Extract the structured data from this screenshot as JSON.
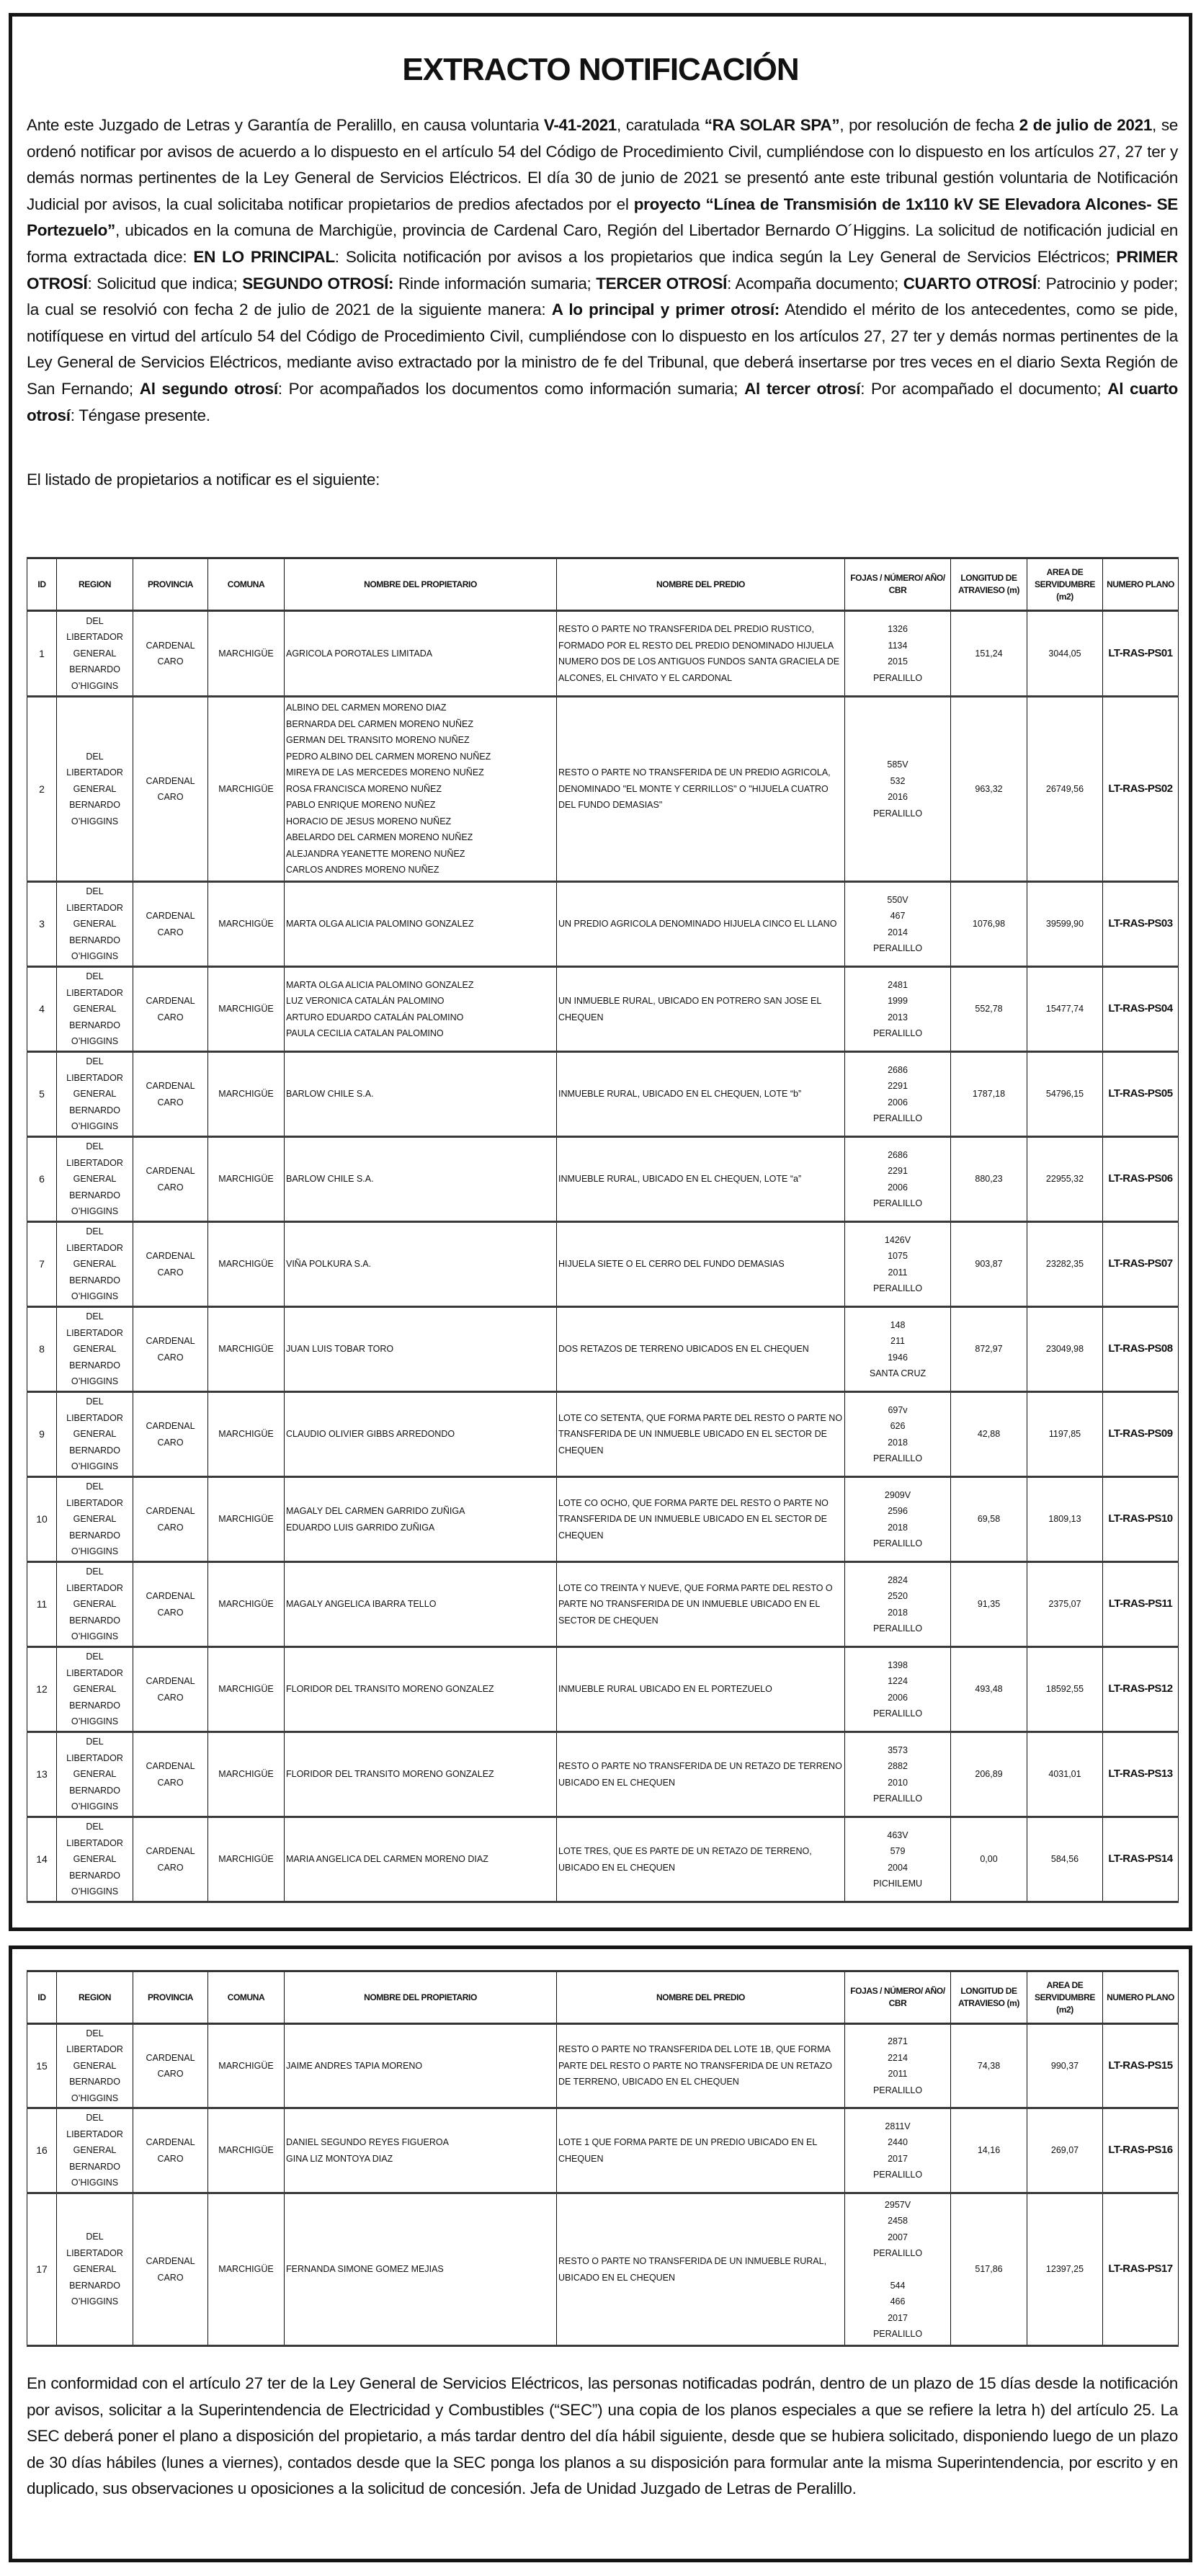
{
  "title": "EXTRACTO NOTIFICACIÓN",
  "intro_segments": [
    {
      "text": "Ante este Juzgado de Letras y Garantía de Peralillo, en causa voluntaria ",
      "bold": false
    },
    {
      "text": "V-41-2021",
      "bold": true
    },
    {
      "text": ", caratulada ",
      "bold": false
    },
    {
      "text": "“RA SOLAR SPA”",
      "bold": true
    },
    {
      "text": ", por resolución de fecha ",
      "bold": false
    },
    {
      "text": "2 de julio de 2021",
      "bold": true
    },
    {
      "text": ", se ordenó notificar por avisos de acuerdo a lo dispuesto en el artículo 54 del Código de Procedimiento Civil, cumpliéndose con lo dispuesto en los artículos 27, 27 ter y demás normas pertinentes de la Ley General de Servicios Eléctricos. El día 30 de junio de 2021 se presentó ante este tribunal gestión voluntaria de Notificación Judicial por avisos, la cual solicitaba notificar propietarios de predios afectados por el ",
      "bold": false
    },
    {
      "text": "proyecto “Línea de Transmisión de 1x110 kV SE Elevadora Alcones- SE Portezuelo”",
      "bold": true
    },
    {
      "text": ", ubicados en la comuna de Marchigüe, provincia de Cardenal Caro, Región del Libertador Bernardo O´Higgins. La solicitud de notificación judicial en forma extractada dice: ",
      "bold": false
    },
    {
      "text": "EN LO PRINCIPAL",
      "bold": true
    },
    {
      "text": ": Solicita notificación por avisos a los propietarios que indica según la Ley General de Servicios Eléctricos; ",
      "bold": false
    },
    {
      "text": "PRIMER OTROSÍ",
      "bold": true
    },
    {
      "text": ": Solicitud que indica; ",
      "bold": false
    },
    {
      "text": "SEGUNDO OTROSÍ:",
      "bold": true
    },
    {
      "text": " Rinde información sumaria; ",
      "bold": false
    },
    {
      "text": "TERCER OTROSÍ",
      "bold": true
    },
    {
      "text": ": Acompaña documento; ",
      "bold": false
    },
    {
      "text": "CUARTO OTROSÍ",
      "bold": true
    },
    {
      "text": ": Patrocinio y poder;  la cual se resolvió con fecha 2 de julio de 2021 de la siguiente manera: ",
      "bold": false
    },
    {
      "text": "A lo principal y primer otrosí:",
      "bold": true
    },
    {
      "text": " Atendido el mérito de los antecedentes, como se pide, notifíquese en virtud del artículo 54 del Código de Procedimiento Civil, cumpliéndose con lo dispuesto en los artículos 27, 27 ter y demás normas pertinentes de la Ley General de Servicios Eléctricos, mediante aviso extractado por la ministro de fe del Tribunal, que deberá insertarse por tres veces en el diario Sexta Región de San Fernando; ",
      "bold": false
    },
    {
      "text": "Al segundo otrosí",
      "bold": true
    },
    {
      "text": ": Por acompañados los documentos como información sumaria; ",
      "bold": false
    },
    {
      "text": "Al tercer otrosí",
      "bold": true
    },
    {
      "text": ": Por acompañado el documento; ",
      "bold": false
    },
    {
      "text": "Al cuarto otrosí",
      "bold": true
    },
    {
      "text": ": Téngase presente.",
      "bold": false
    }
  ],
  "listing_intro": "El listado de propietarios a notificar es el siguiente:",
  "headers": {
    "id": "ID",
    "region": "REGION",
    "provincia": "PROVINCIA",
    "comuna": "COMUNA",
    "owner": "NOMBRE DEL PROPIETARIO",
    "predio": "NOMBRE DEL PREDIO",
    "fojas": "FOJAS / NÚMERO/ AÑO/ CBR",
    "longitud": "LONGITUD DE ATRAVIESO (m)",
    "area": "AREA DE SERVIDUMBRE (m2)",
    "plano": "NUMERO PLANO"
  },
  "table1": {
    "rows": [
      {
        "id": "1",
        "region": "DEL LIBERTADOR GENERAL BERNARDO O’HIGGINS",
        "provincia": "CARDENAL CARO",
        "comuna": "MARCHIGÜE",
        "owners": [
          "AGRICOLA POROTALES LIMITADA"
        ],
        "predio": "RESTO O PARTE NO TRANSFERIDA DEL PREDIO RUSTICO, FORMADO POR EL RESTO DEL PREDIO DENOMINADO HIJUELA NUMERO DOS DE LOS ANTIGUOS FUNDOS SANTA GRACIELA DE ALCONES, EL CHIVATO Y EL CARDONAL",
        "fojas": [
          "1326",
          "1134",
          "2015",
          "PERALILLO"
        ],
        "longitud": "151,24",
        "area": "3044,05",
        "plano": "LT-RAS-PS01"
      },
      {
        "id": "2",
        "region": "DEL LIBERTADOR GENERAL BERNARDO O’HIGGINS",
        "provincia": "CARDENAL CARO",
        "comuna": "MARCHIGÜE",
        "owners": [
          "ALBINO DEL CARMEN MORENO DIAZ",
          "BERNARDA DEL CARMEN MORENO NUÑEZ",
          "GERMAN DEL TRANSITO MORENO NUÑEZ",
          "PEDRO ALBINO DEL CARMEN MORENO NUÑEZ",
          "MIREYA DE LAS MERCEDES MORENO NUÑEZ",
          "ROSA FRANCISCA MORENO NUÑEZ",
          "PABLO ENRIQUE MORENO NUÑEZ",
          "HORACIO DE JESUS MORENO NUÑEZ",
          "ABELARDO DEL CARMEN MORENO NUÑEZ",
          "ALEJANDRA YEANETTE MORENO NUÑEZ",
          "CARLOS ANDRES MORENO NUÑEZ"
        ],
        "predio": "RESTO O PARTE NO TRANSFERIDA DE UN PREDIO AGRICOLA, DENOMINADO \"EL MONTE Y CERRILLOS\" O \"HIJUELA CUATRO DEL FUNDO DEMASIAS\"",
        "fojas": [
          "585V",
          "532",
          "2016",
          "PERALILLO"
        ],
        "longitud": "963,32",
        "area": "26749,56",
        "plano": "LT-RAS-PS02"
      },
      {
        "id": "3",
        "region": "DEL LIBERTADOR GENERAL BERNARDO O’HIGGINS",
        "provincia": "CARDENAL CARO",
        "comuna": "MARCHIGÜE",
        "owners": [
          "MARTA OLGA ALICIA PALOMINO GONZALEZ"
        ],
        "predio": "UN PREDIO AGRICOLA DENOMINADO HIJUELA CINCO EL LLANO",
        "fojas": [
          "550V",
          "467",
          "2014",
          "PERALILLO"
        ],
        "longitud": "1076,98",
        "area": "39599,90",
        "plano": "LT-RAS-PS03"
      },
      {
        "id": "4",
        "region": "DEL LIBERTADOR GENERAL BERNARDO O’HIGGINS",
        "provincia": "CARDENAL CARO",
        "comuna": "MARCHIGÜE",
        "owners": [
          "MARTA OLGA ALICIA PALOMINO GONZALEZ",
          "LUZ VERONICA CATALÁN PALOMINO",
          "ARTURO EDUARDO CATALÁN PALOMINO",
          "PAULA CECILIA CATALAN PALOMINO"
        ],
        "predio": "UN INMUEBLE RURAL, UBICADO EN POTRERO SAN JOSE EL CHEQUEN",
        "fojas": [
          "2481",
          "1999",
          "2013",
          "PERALILLO"
        ],
        "longitud": "552,78",
        "area": "15477,74",
        "plano": "LT-RAS-PS04"
      },
      {
        "id": "5",
        "region": "DEL LIBERTADOR GENERAL BERNARDO O’HIGGINS",
        "provincia": "CARDENAL CARO",
        "comuna": "MARCHIGÜE",
        "owners": [
          "BARLOW CHILE S.A."
        ],
        "predio": "INMUEBLE RURAL, UBICADO EN EL CHEQUEN, LOTE “b”",
        "fojas": [
          "2686",
          "2291",
          "2006",
          "PERALILLO"
        ],
        "longitud": "1787,18",
        "area": "54796,15",
        "plano": "LT-RAS-PS05"
      },
      {
        "id": "6",
        "region": "DEL LIBERTADOR GENERAL BERNARDO O’HIGGINS",
        "provincia": "CARDENAL CARO",
        "comuna": "MARCHIGÜE",
        "owners": [
          "BARLOW CHILE S.A."
        ],
        "predio": "INMUEBLE RURAL, UBICADO EN EL CHEQUEN, LOTE “a”",
        "fojas": [
          "2686",
          "2291",
          "2006",
          "PERALILLO"
        ],
        "longitud": "880,23",
        "area": "22955,32",
        "plano": "LT-RAS-PS06"
      },
      {
        "id": "7",
        "region": "DEL LIBERTADOR GENERAL BERNARDO O’HIGGINS",
        "provincia": "CARDENAL CARO",
        "comuna": "MARCHIGÜE",
        "owners": [
          "VIÑA POLKURA S.A."
        ],
        "predio": "HIJUELA SIETE O EL CERRO DEL FUNDO DEMASIAS",
        "fojas": [
          "1426V",
          "1075",
          "2011",
          "PERALILLO"
        ],
        "longitud": "903,87",
        "area": "23282,35",
        "plano": "LT-RAS-PS07"
      },
      {
        "id": "8",
        "region": "DEL LIBERTADOR GENERAL BERNARDO O’HIGGINS",
        "provincia": "CARDENAL CARO",
        "comuna": "MARCHIGÜE",
        "owners": [
          "JUAN LUIS TOBAR TORO"
        ],
        "predio": "DOS RETAZOS DE TERRENO UBICADOS EN EL CHEQUEN",
        "fojas": [
          "148",
          "211",
          "1946",
          "SANTA CRUZ"
        ],
        "longitud": "872,97",
        "area": "23049,98",
        "plano": "LT-RAS-PS08"
      },
      {
        "id": "9",
        "region": "DEL LIBERTADOR GENERAL BERNARDO O’HIGGINS",
        "provincia": "CARDENAL CARO",
        "comuna": "MARCHIGÜE",
        "owners": [
          "CLAUDIO OLIVIER GIBBS ARREDONDO"
        ],
        "predio": "LOTE CO SETENTA, QUE FORMA PARTE DEL RESTO O PARTE NO TRANSFERIDA DE UN INMUEBLE UBICADO EN EL SECTOR DE CHEQUEN",
        "fojas": [
          "697v",
          "626",
          "2018",
          "PERALILLO"
        ],
        "longitud": "42,88",
        "area": "1197,85",
        "plano": "LT-RAS-PS09"
      },
      {
        "id": "10",
        "region": "DEL LIBERTADOR GENERAL BERNARDO O’HIGGINS",
        "provincia": "CARDENAL CARO",
        "comuna": "MARCHIGÜE",
        "owners": [
          "MAGALY DEL CARMEN GARRIDO ZUÑIGA",
          "EDUARDO LUIS GARRIDO ZUÑIGA"
        ],
        "predio": "LOTE CO OCHO, QUE FORMA PARTE DEL RESTO O PARTE NO TRANSFERIDA DE UN INMUEBLE UBICADO EN EL SECTOR DE CHEQUEN",
        "fojas": [
          "2909V",
          "2596",
          "2018",
          "PERALILLO"
        ],
        "longitud": "69,58",
        "area": "1809,13",
        "plano": "LT-RAS-PS10"
      },
      {
        "id": "11",
        "region": "DEL LIBERTADOR GENERAL BERNARDO O’HIGGINS",
        "provincia": "CARDENAL CARO",
        "comuna": "MARCHIGÜE",
        "owners": [
          "MAGALY ANGELICA IBARRA TELLO"
        ],
        "predio": "LOTE CO TREINTA Y NUEVE, QUE FORMA PARTE DEL RESTO O PARTE NO TRANSFERIDA DE UN INMUEBLE UBICADO EN EL SECTOR DE CHEQUEN",
        "fojas": [
          "2824",
          "2520",
          "2018",
          "PERALILLO"
        ],
        "longitud": "91,35",
        "area": "2375,07",
        "plano": "LT-RAS-PS11"
      },
      {
        "id": "12",
        "region": "DEL LIBERTADOR GENERAL BERNARDO O’HIGGINS",
        "provincia": "CARDENAL CARO",
        "comuna": "MARCHIGÜE",
        "owners": [
          "FLORIDOR DEL TRANSITO MORENO GONZALEZ"
        ],
        "predio": "INMUEBLE RURAL UBICADO EN EL PORTEZUELO",
        "fojas": [
          "1398",
          "1224",
          "2006",
          "PERALILLO"
        ],
        "longitud": "493,48",
        "area": "18592,55",
        "plano": "LT-RAS-PS12"
      },
      {
        "id": "13",
        "region": "DEL LIBERTADOR GENERAL BERNARDO O’HIGGINS",
        "provincia": "CARDENAL CARO",
        "comuna": "MARCHIGÜE",
        "owners": [
          "FLORIDOR DEL TRANSITO MORENO GONZALEZ"
        ],
        "predio": "RESTO O PARTE NO TRANSFERIDA DE UN RETAZO DE TERRENO UBICADO EN EL CHEQUEN",
        "fojas": [
          "3573",
          "2882",
          "2010",
          "PERALILLO"
        ],
        "longitud": "206,89",
        "area": "4031,01",
        "plano": "LT-RAS-PS13"
      },
      {
        "id": "14",
        "region": "DEL LIBERTADOR GENERAL BERNARDO O’HIGGINS",
        "provincia": "CARDENAL CARO",
        "comuna": "MARCHIGÜE",
        "owners": [
          "MARIA ANGELICA DEL CARMEN MORENO DIAZ"
        ],
        "predio": "LOTE TRES, QUE ES PARTE DE UN RETAZO DE TERRENO, UBICADO EN EL CHEQUEN",
        "fojas": [
          "463V",
          "579",
          "2004",
          "PICHILEMU"
        ],
        "longitud": "0,00",
        "area": "584,56",
        "plano": "LT-RAS-PS14"
      }
    ]
  },
  "table2": {
    "rows": [
      {
        "id": "15",
        "region": "DEL LIBERTADOR GENERAL BERNARDO O’HIGGINS",
        "provincia": "CARDENAL CARO",
        "comuna": "MARCHIGÜE",
        "owners": [
          "JAIME ANDRES TAPIA MORENO"
        ],
        "predio": "RESTO O PARTE NO TRANSFERIDA DEL LOTE 1B, QUE FORMA PARTE DEL RESTO O PARTE NO TRANSFERIDA DE UN RETAZO DE TERRENO, UBICADO EN EL CHEQUEN",
        "fojas": [
          "2871",
          "2214",
          "2011",
          "PERALILLO"
        ],
        "longitud": "74,38",
        "area": "990,37",
        "plano": "LT-RAS-PS15"
      },
      {
        "id": "16",
        "region": "DEL LIBERTADOR GENERAL BERNARDO O’HIGGINS",
        "provincia": "CARDENAL CARO",
        "comuna": "MARCHIGÜE",
        "owners": [
          "DANIEL SEGUNDO REYES FIGUEROA",
          "GINA LIZ MONTOYA DIAZ"
        ],
        "predio": "LOTE 1 QUE FORMA PARTE DE UN PREDIO UBICADO EN EL CHEQUEN",
        "fojas": [
          "2811V",
          "2440",
          "2017",
          "PERALILLO"
        ],
        "longitud": "14,16",
        "area": "269,07",
        "plano": "LT-RAS-PS16"
      },
      {
        "id": "17",
        "region": "DEL LIBERTADOR GENERAL BERNARDO O’HIGGINS",
        "provincia": "CARDENAL CARO",
        "comuna": "MARCHIGÜE",
        "owners": [
          "FERNANDA SIMONE GOMEZ MEJIAS"
        ],
        "predio": "RESTO O PARTE NO TRANSFERIDA DE UN INMUEBLE RURAL, UBICADO EN EL CHEQUEN",
        "fojas": [
          "2957V",
          "2458",
          "2007",
          "PERALILLO",
          "",
          "544",
          "466",
          "2017",
          "PERALILLO"
        ],
        "longitud": "517,86",
        "area": "12397,25",
        "plano": "LT-RAS-PS17"
      }
    ]
  },
  "footer": "En conformidad con el artículo 27 ter de la Ley General de Servicios Eléctricos, las personas notificadas podrán, dentro de un plazo de 15 días desde la notificación por avisos, solicitar a la Superintendencia de Electricidad y Combustibles (“SEC”) una copia de los planos especiales a que se refiere la letra h) del artículo 25. La SEC deberá poner el plano a disposición del propietario, a más tardar dentro del día hábil siguiente, desde que se hubiera solicitado, disponiendo luego de un plazo de 30 días hábiles (lunes a viernes), contados desde que la SEC ponga los planos a su disposición para formular ante la misma Superintendencia, por escrito y en duplicado, sus observaciones u oposiciones a la solicitud de concesión. Jefa de Unidad Juzgado de Letras de Peralillo."
}
